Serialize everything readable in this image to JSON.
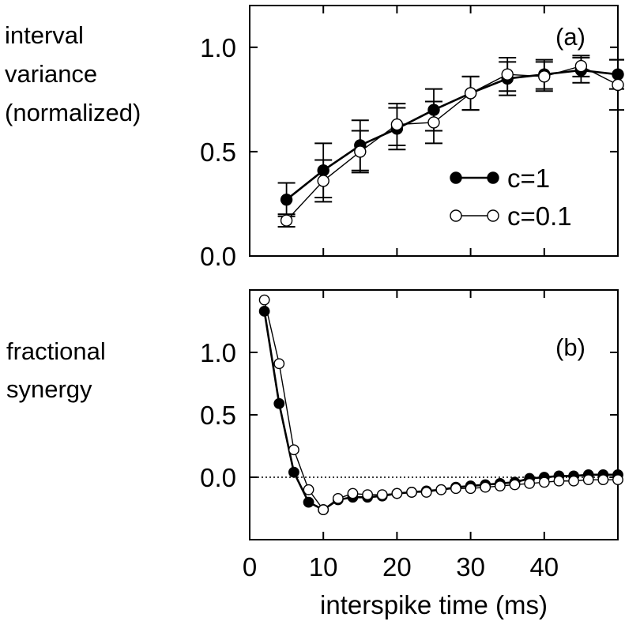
{
  "chart_data": [
    {
      "type": "line",
      "panel_label": "(a)",
      "ylabel": [
        "interval",
        "variance",
        "(normalized)"
      ],
      "xlim": [
        0,
        50
      ],
      "ylim": [
        0,
        1.2
      ],
      "yticks": [
        0.0,
        0.5,
        1.0
      ],
      "ytick_labels": [
        "0.0",
        "0.5",
        "1.0"
      ],
      "xticks": [
        10,
        20,
        30,
        40
      ],
      "grid": false,
      "legend_position": "center-right",
      "series": [
        {
          "name": "c=1",
          "marker": "filled-circle",
          "color": "#000000",
          "x": [
            5,
            10,
            15,
            20,
            25,
            30,
            35,
            40,
            45,
            50
          ],
          "y": [
            0.27,
            0.41,
            0.53,
            0.61,
            0.7,
            0.78,
            0.85,
            0.87,
            0.89,
            0.87
          ],
          "err": [
            0.08,
            0.13,
            0.12,
            0.1,
            0.1,
            0.08,
            0.08,
            0.07,
            0.06,
            0.07
          ]
        },
        {
          "name": "c=0.1",
          "marker": "open-circle",
          "color": "#000000",
          "x": [
            5,
            10,
            15,
            20,
            25,
            30,
            35,
            40,
            45,
            50
          ],
          "y": [
            0.17,
            0.36,
            0.5,
            0.63,
            0.64,
            0.78,
            0.87,
            0.86,
            0.91,
            0.82
          ],
          "err": [
            0.03,
            0.1,
            0.1,
            0.1,
            0.1,
            0.08,
            0.08,
            0.07,
            0.05,
            0.12
          ]
        }
      ]
    },
    {
      "type": "line",
      "panel_label": "(b)",
      "ylabel": [
        "fractional",
        "synergy"
      ],
      "xlabel": "interspike time (ms)",
      "xlim": [
        0,
        50
      ],
      "ylim": [
        -0.5,
        1.5
      ],
      "yticks": [
        0.0,
        0.5,
        1.0
      ],
      "ytick_labels": [
        "0.0",
        "0.5",
        "1.0"
      ],
      "xticks": [
        0,
        10,
        20,
        30,
        40
      ],
      "xtick_labels": [
        "0",
        "10",
        "20",
        "30",
        "40"
      ],
      "reference_line": {
        "y": 0,
        "style": "dotted"
      },
      "grid": false,
      "series": [
        {
          "name": "c=1",
          "marker": "filled-circle",
          "color": "#000000",
          "x": [
            2,
            4,
            6,
            8,
            10,
            12,
            14,
            16,
            18,
            20,
            22,
            24,
            26,
            28,
            30,
            32,
            34,
            36,
            38,
            40,
            42,
            44,
            46,
            48,
            50
          ],
          "y": [
            1.33,
            0.59,
            0.04,
            -0.2,
            -0.26,
            -0.18,
            -0.16,
            -0.16,
            -0.15,
            -0.13,
            -0.12,
            -0.11,
            -0.1,
            -0.08,
            -0.07,
            -0.06,
            -0.05,
            -0.04,
            -0.01,
            0.0,
            0.01,
            0.01,
            0.02,
            0.02,
            0.02
          ]
        },
        {
          "name": "c=0.1",
          "marker": "open-circle",
          "color": "#000000",
          "x": [
            2,
            4,
            6,
            8,
            10,
            12,
            14,
            16,
            18,
            20,
            22,
            24,
            26,
            28,
            30,
            32,
            34,
            36,
            38,
            40,
            42,
            44,
            46,
            48,
            50
          ],
          "y": [
            1.42,
            0.91,
            0.22,
            -0.1,
            -0.26,
            -0.17,
            -0.13,
            -0.14,
            -0.14,
            -0.13,
            -0.12,
            -0.12,
            -0.1,
            -0.09,
            -0.09,
            -0.08,
            -0.07,
            -0.06,
            -0.05,
            -0.04,
            -0.03,
            -0.03,
            -0.02,
            -0.02,
            -0.02
          ]
        }
      ]
    }
  ]
}
